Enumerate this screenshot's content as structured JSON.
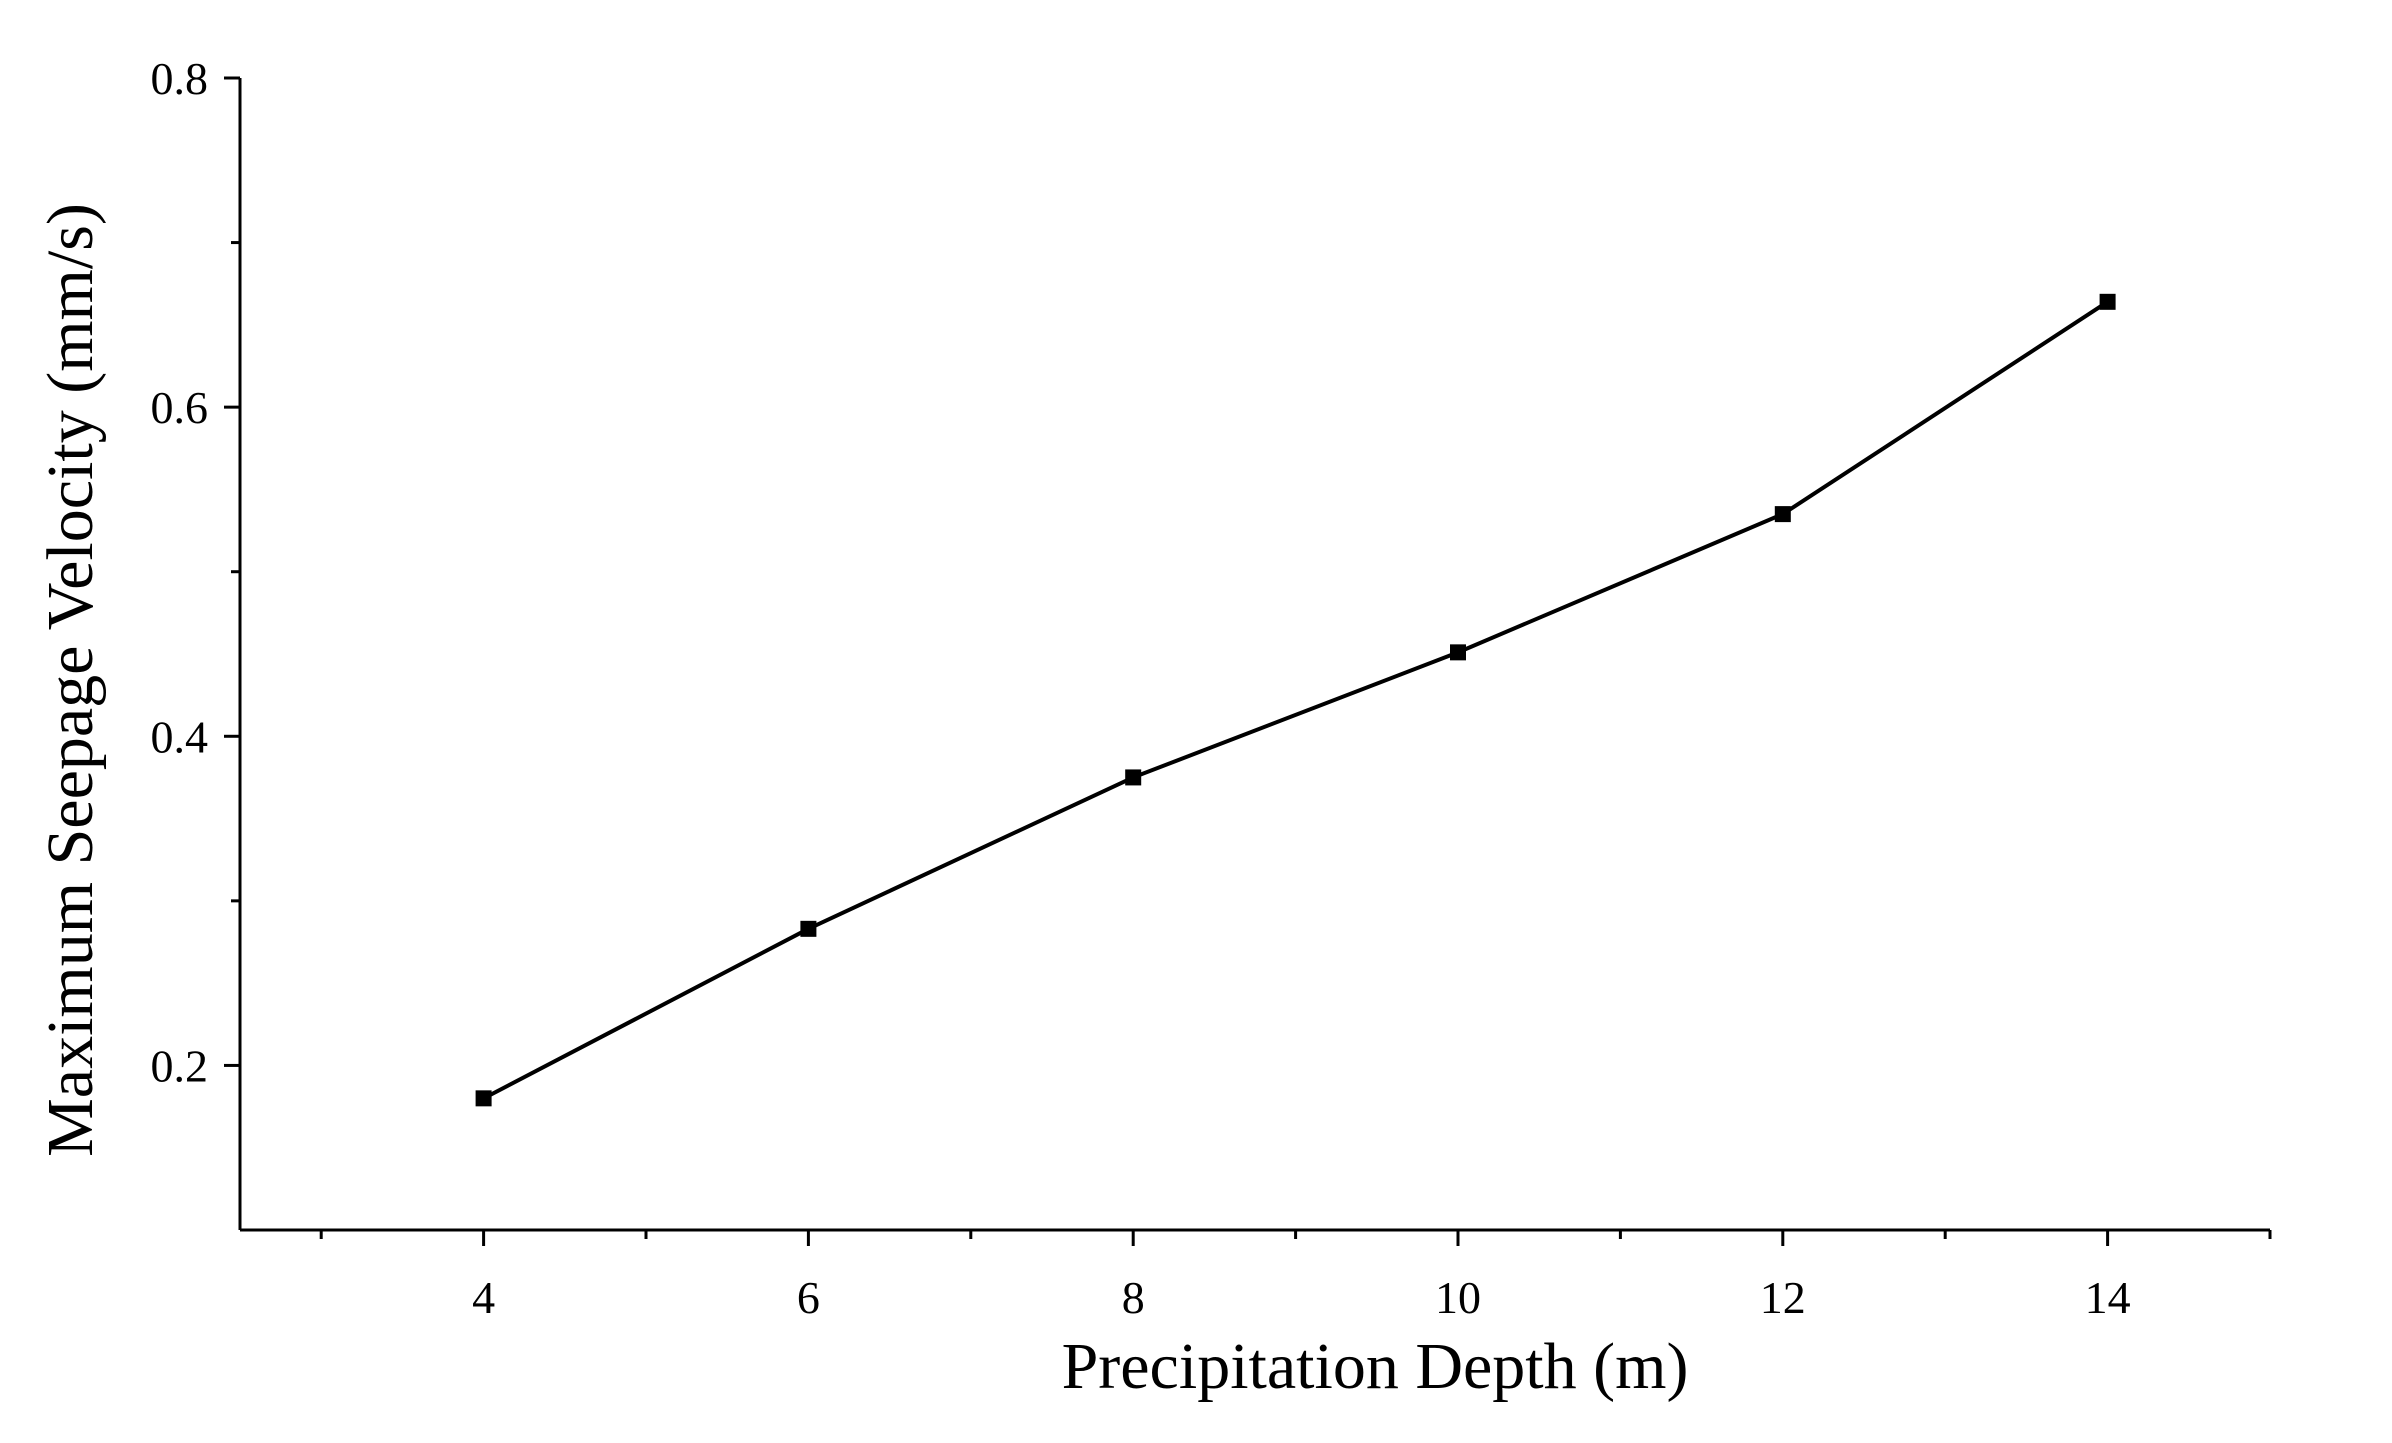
{
  "chart_data": {
    "type": "line",
    "title": "",
    "xlabel": "Precipitation Depth (m)",
    "ylabel": "Maximum Seepage Velocity (mm/s)",
    "xlim": [
      2.5,
      15
    ],
    "ylim": [
      0.1,
      0.8
    ],
    "x_major_ticks": [
      4,
      6,
      8,
      10,
      12,
      14
    ],
    "x_tick_labels": [
      "4",
      "6",
      "8",
      "10",
      "12",
      "14"
    ],
    "x_minor_ticks": [
      3,
      5,
      7,
      9,
      11,
      13,
      15
    ],
    "y_major_ticks": [
      0.2,
      0.4,
      0.6,
      0.8
    ],
    "y_tick_labels": [
      "0.2",
      "0.4",
      "0.6",
      "0.8"
    ],
    "y_minor_ticks": [
      0.3,
      0.5,
      0.7
    ],
    "grid": false,
    "legend": "none",
    "series": [
      {
        "name": "Maximum Seepage Velocity",
        "marker": "square",
        "color": "#000000",
        "x": [
          4,
          6,
          8,
          10,
          12,
          14
        ],
        "values": [
          0.18,
          0.283,
          0.375,
          0.451,
          0.535,
          0.664
        ]
      }
    ]
  }
}
